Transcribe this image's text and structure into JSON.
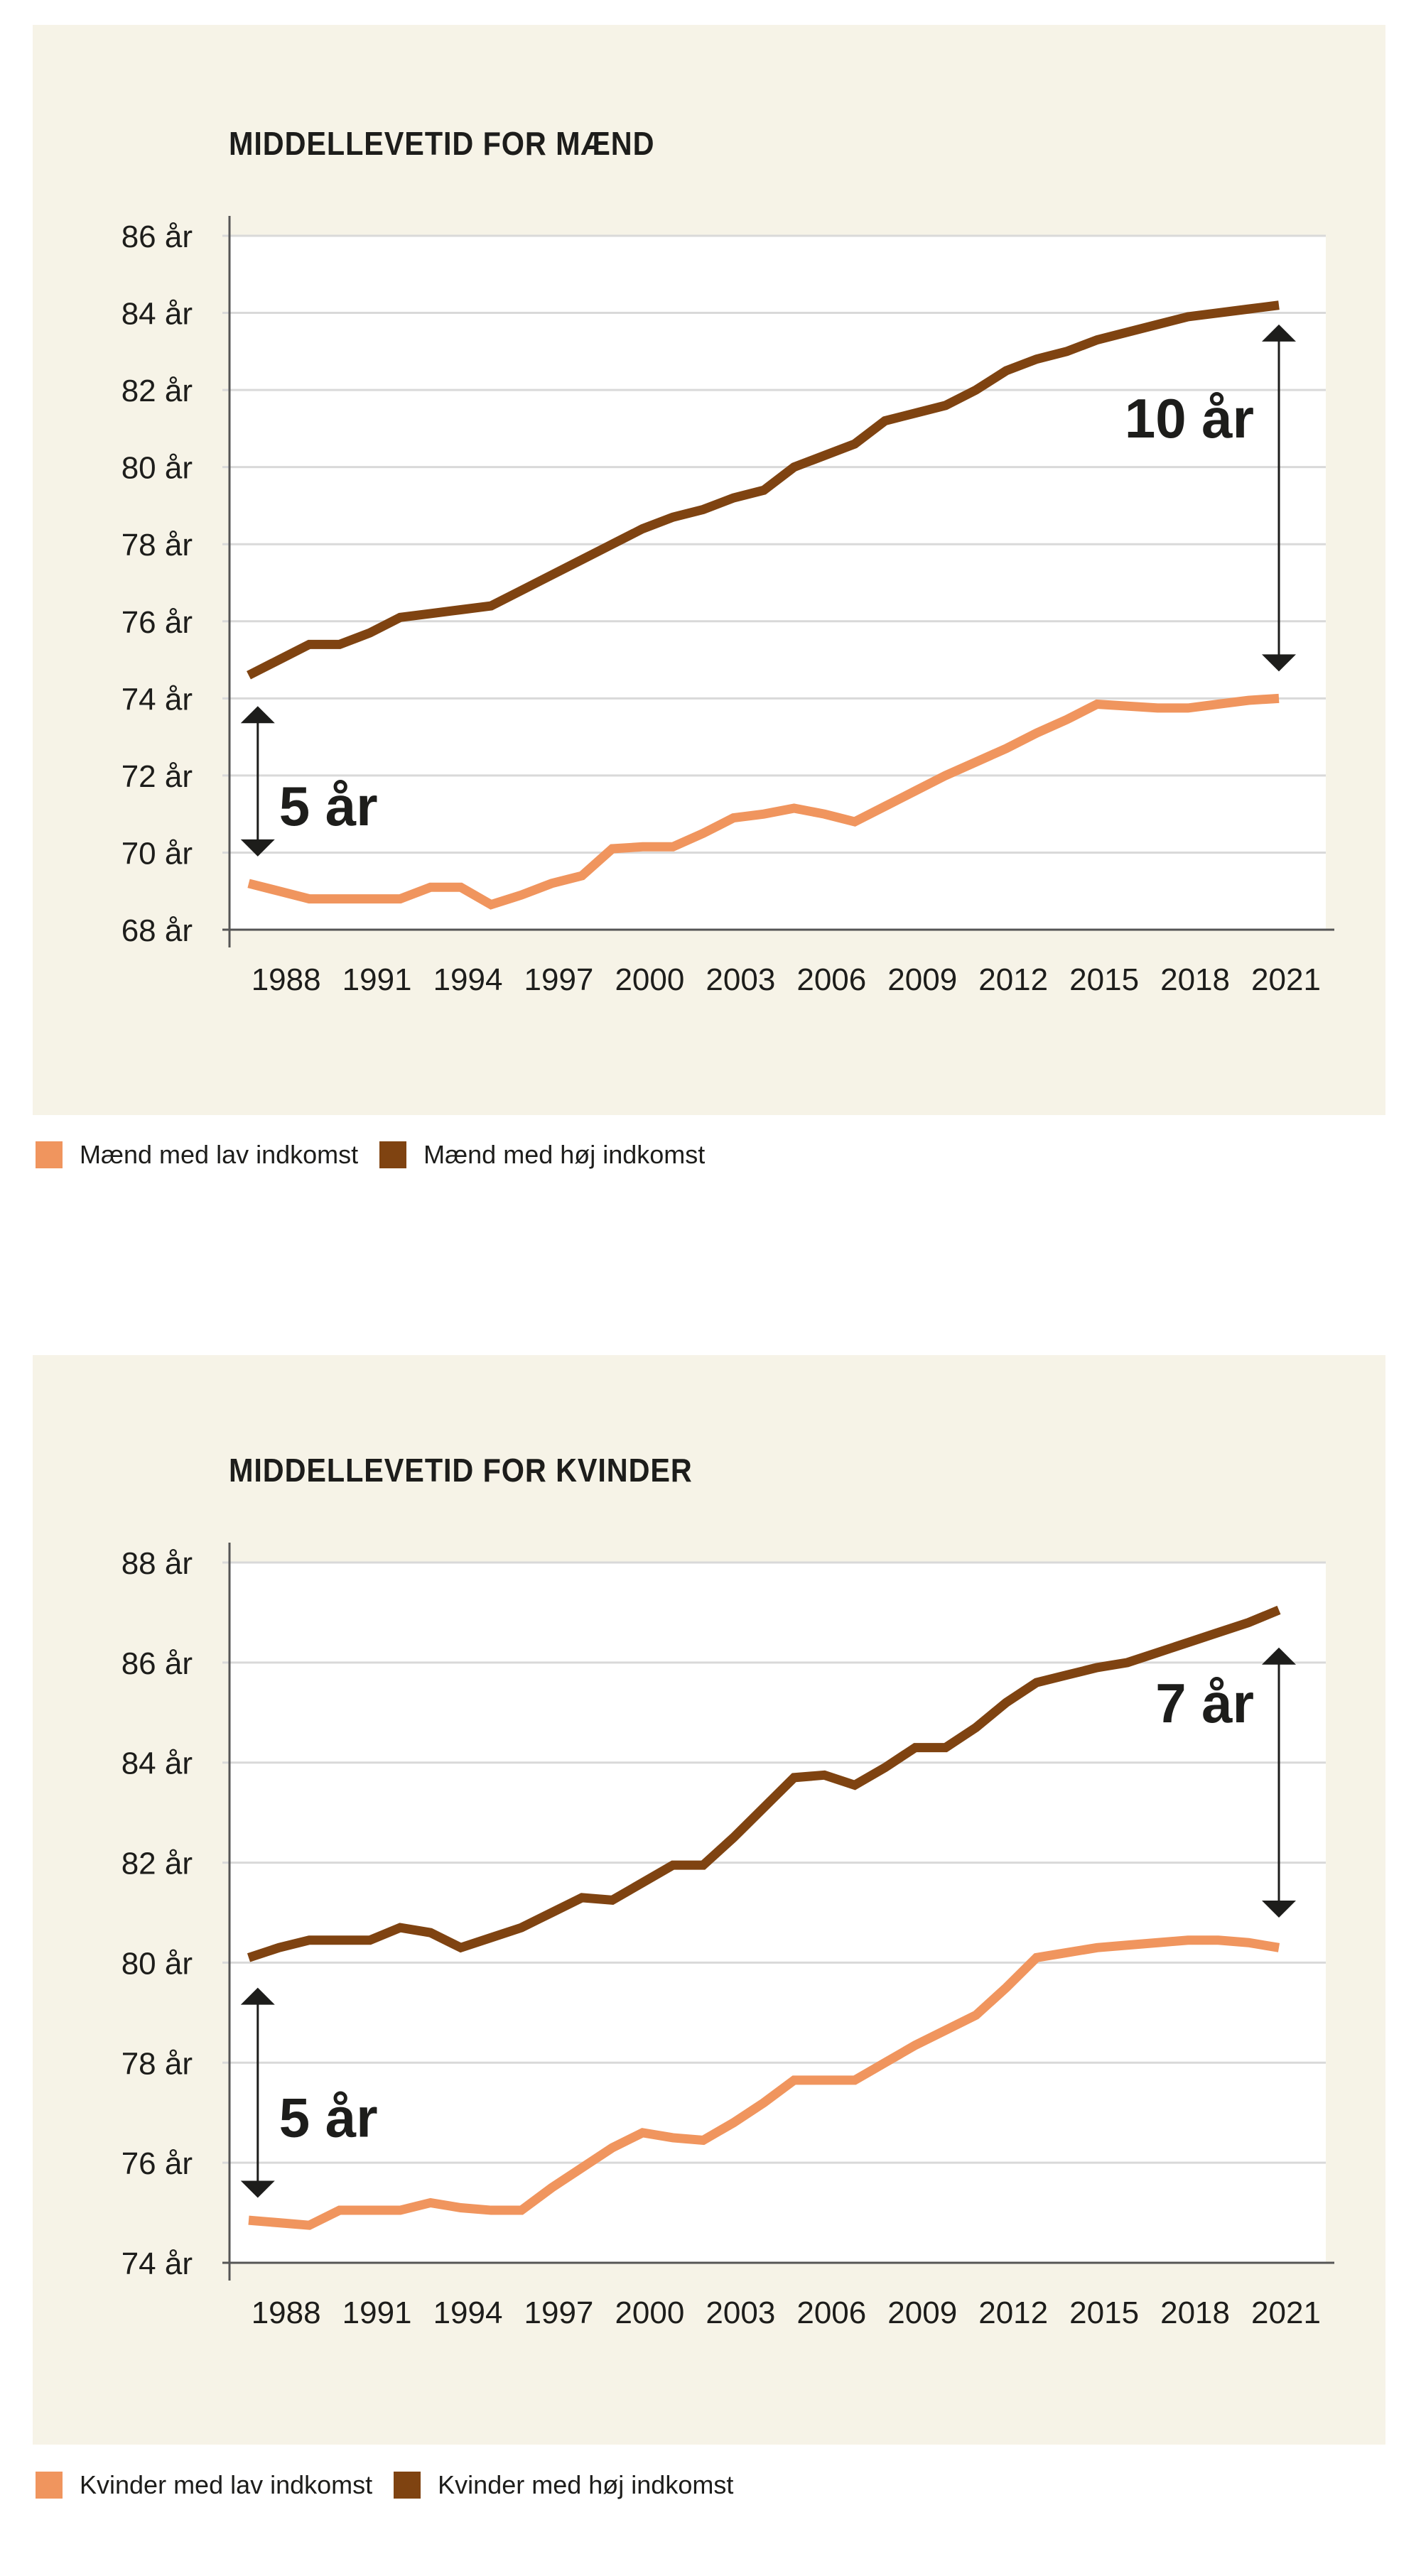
{
  "colors": {
    "background": "#f6f3e7",
    "plot": "#ffffff",
    "low": "#f0955e",
    "high": "#7f4311",
    "grid": "#d9d9d9",
    "text": "#1d1d1b"
  },
  "chart_data": [
    {
      "type": "line",
      "title": "MIDDELLEVETID FOR MÆND",
      "ylim": [
        68,
        86
      ],
      "yticks": [
        68,
        70,
        72,
        74,
        76,
        78,
        80,
        82,
        84,
        86
      ],
      "ytick_labels": [
        "68 år",
        "70 år",
        "72 år",
        "74 år",
        "76 år",
        "78 år",
        "80 år",
        "82 år",
        "84 år",
        "86 år"
      ],
      "xlim": [
        1987,
        2021
      ],
      "xticks": [
        "1988",
        "1991",
        "1994",
        "1997",
        "2000",
        "2003",
        "2006",
        "2009",
        "2012",
        "2015",
        "2018",
        "2021"
      ],
      "grid": true,
      "legend_placement": "bottom-left",
      "x": [
        1987,
        1988,
        1989,
        1990,
        1991,
        1992,
        1993,
        1994,
        1995,
        1996,
        1997,
        1998,
        1999,
        2000,
        2001,
        2002,
        2003,
        2004,
        2005,
        2006,
        2007,
        2008,
        2009,
        2010,
        2011,
        2012,
        2013,
        2014,
        2015,
        2016,
        2017,
        2018,
        2019,
        2020,
        2021
      ],
      "series": [
        {
          "name": "Mænd med lav indkomst",
          "color": "#f0955e",
          "values": [
            69.2,
            69.0,
            68.8,
            68.8,
            68.8,
            68.8,
            69.1,
            69.1,
            68.65,
            68.9,
            69.2,
            69.4,
            70.1,
            70.15,
            70.15,
            70.5,
            70.9,
            71.0,
            71.15,
            71.0,
            70.8,
            71.2,
            71.6,
            72.0,
            72.35,
            72.7,
            73.1,
            73.45,
            73.85,
            73.8,
            73.75,
            73.75,
            73.85,
            73.95,
            74.0
          ]
        },
        {
          "name": "Mænd med høj indkomst",
          "color": "#7f4311",
          "values": [
            74.6,
            75.0,
            75.4,
            75.4,
            75.7,
            76.1,
            76.2,
            76.3,
            76.4,
            76.8,
            77.2,
            77.6,
            78.0,
            78.4,
            78.7,
            78.9,
            79.2,
            79.4,
            80.0,
            80.3,
            80.6,
            81.2,
            81.4,
            81.6,
            82.0,
            82.5,
            82.8,
            83.0,
            83.3,
            83.5,
            83.7,
            83.9,
            84.0,
            84.1,
            84.2
          ]
        }
      ],
      "annotations": [
        {
          "label": "5 år",
          "x": 1987.3,
          "from": 73.8,
          "to": 69.9
        },
        {
          "label": "10 år",
          "x": 2021,
          "from": 83.7,
          "to": 74.7
        }
      ]
    },
    {
      "type": "line",
      "title": "MIDDELLEVETID FOR KVINDER",
      "ylim": [
        74,
        88
      ],
      "yticks": [
        74,
        76,
        78,
        80,
        82,
        84,
        86,
        88
      ],
      "ytick_labels": [
        "74 år",
        "76 år",
        "78 år",
        "80 år",
        "82 år",
        "84 år",
        "86 år",
        "88 år"
      ],
      "xlim": [
        1987,
        2021
      ],
      "xticks": [
        "1988",
        "1991",
        "1994",
        "1997",
        "2000",
        "2003",
        "2006",
        "2009",
        "2012",
        "2015",
        "2018",
        "2021"
      ],
      "grid": true,
      "legend_placement": "bottom-left",
      "x": [
        1987,
        1988,
        1989,
        1990,
        1991,
        1992,
        1993,
        1994,
        1995,
        1996,
        1997,
        1998,
        1999,
        2000,
        2001,
        2002,
        2003,
        2004,
        2005,
        2006,
        2007,
        2008,
        2009,
        2010,
        2011,
        2012,
        2013,
        2014,
        2015,
        2016,
        2017,
        2018,
        2019,
        2020,
        2021
      ],
      "series": [
        {
          "name": "Kvinder med lav indkomst",
          "color": "#f0955e",
          "values": [
            74.85,
            74.8,
            74.75,
            75.05,
            75.05,
            75.05,
            75.2,
            75.1,
            75.05,
            75.05,
            75.5,
            75.9,
            76.3,
            76.6,
            76.5,
            76.45,
            76.8,
            77.2,
            77.65,
            77.65,
            77.65,
            78.0,
            78.35,
            78.65,
            78.95,
            79.5,
            80.1,
            80.2,
            80.3,
            80.35,
            80.4,
            80.45,
            80.45,
            80.4,
            80.3
          ]
        },
        {
          "name": "Kvinder med høj indkomst",
          "color": "#7f4311",
          "values": [
            80.1,
            80.3,
            80.45,
            80.45,
            80.45,
            80.7,
            80.6,
            80.3,
            80.5,
            80.7,
            81.0,
            81.3,
            81.25,
            81.6,
            81.95,
            81.95,
            82.5,
            83.1,
            83.7,
            83.75,
            83.55,
            83.9,
            84.3,
            84.3,
            84.7,
            85.2,
            85.6,
            85.75,
            85.9,
            86.0,
            86.2,
            86.4,
            86.6,
            86.8,
            87.05
          ]
        }
      ],
      "annotations": [
        {
          "label": "5 år",
          "x": 1987.3,
          "from": 79.5,
          "to": 75.3
        },
        {
          "label": "7 år",
          "x": 2021,
          "from": 86.3,
          "to": 80.9
        }
      ]
    }
  ]
}
